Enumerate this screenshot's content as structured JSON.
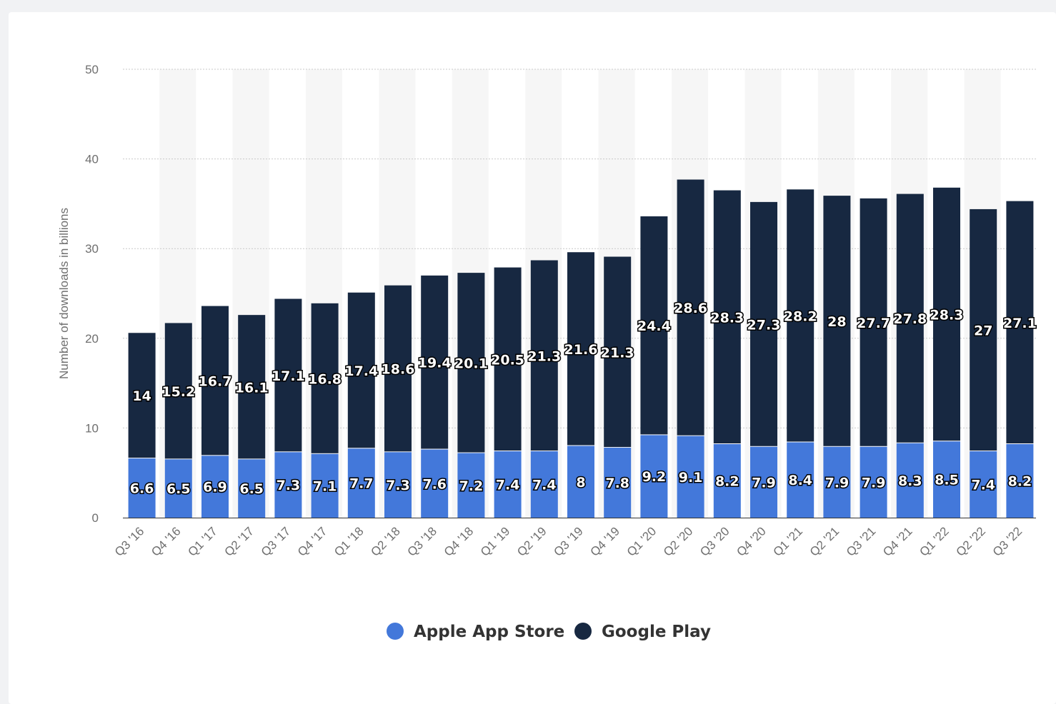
{
  "chart_data": {
    "type": "bar",
    "stacked": true,
    "title": "",
    "xlabel": "",
    "ylabel": "Number of downloads in billions",
    "ylim": [
      0,
      50
    ],
    "yticks": [
      0,
      10,
      20,
      30,
      40,
      50
    ],
    "grid": true,
    "legend_position": "bottom",
    "categories": [
      "Q3 '16",
      "Q4 '16",
      "Q1 '17",
      "Q2 '17",
      "Q3 '17",
      "Q4 '17",
      "Q1 '18",
      "Q2 '18",
      "Q3 '18",
      "Q4 '18",
      "Q1 '19",
      "Q2 '19",
      "Q3 '19",
      "Q4 '19",
      "Q1 '20",
      "Q2 '20",
      "Q3 '20",
      "Q4 '20",
      "Q1 '21",
      "Q2 '21",
      "Q3 '21",
      "Q4 '21",
      "Q1 '22",
      "Q2 '22",
      "Q3 '22"
    ],
    "series": [
      {
        "name": "Apple App Store",
        "color": "#4378da",
        "values": [
          6.6,
          6.5,
          6.9,
          6.5,
          7.3,
          7.1,
          7.7,
          7.3,
          7.6,
          7.2,
          7.4,
          7.4,
          8,
          7.8,
          9.2,
          9.1,
          8.2,
          7.9,
          8.4,
          7.9,
          7.9,
          8.3,
          8.5,
          7.4,
          8.2
        ]
      },
      {
        "name": "Google Play",
        "color": "#172841",
        "values": [
          14,
          15.2,
          16.7,
          16.1,
          17.1,
          16.8,
          17.4,
          18.6,
          19.4,
          20.1,
          20.5,
          21.3,
          21.6,
          21.3,
          24.4,
          28.6,
          28.3,
          27.3,
          28.2,
          28,
          27.7,
          27.8,
          28.3,
          27,
          27.1
        ]
      }
    ]
  }
}
